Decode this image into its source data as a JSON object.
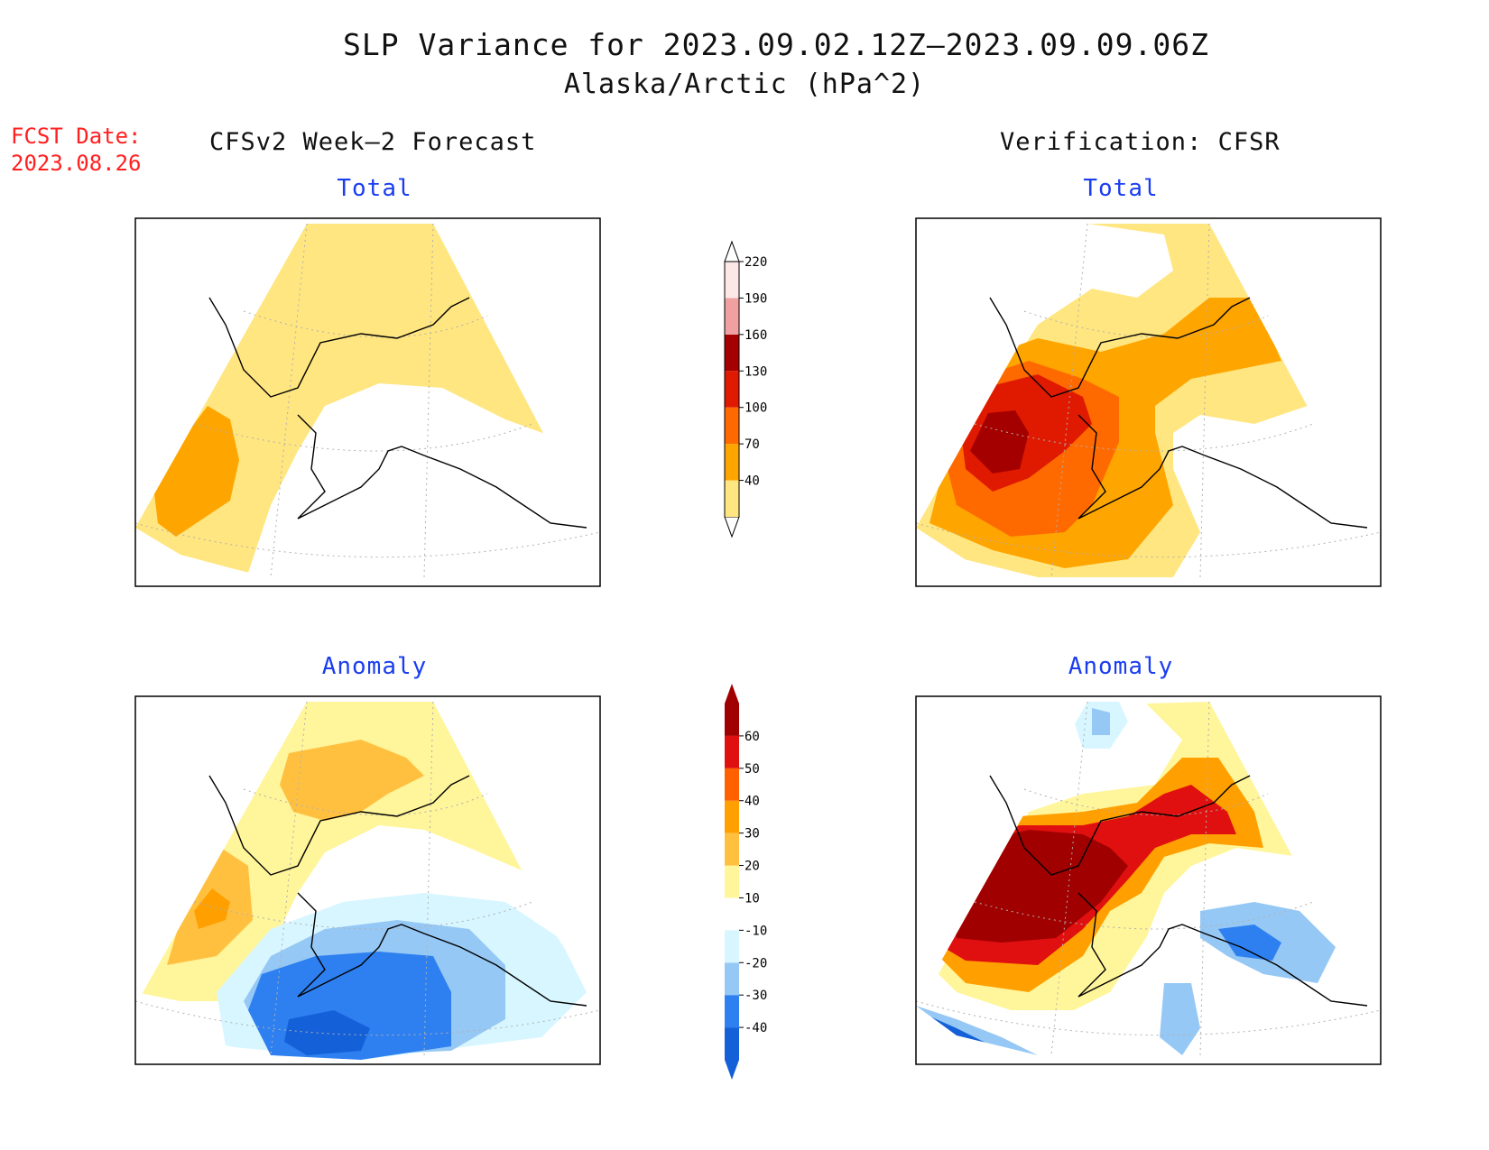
{
  "title": "SLP Variance for 2023.09.02.12Z–2023.09.09.06Z",
  "subtitle": "Alaska/Arctic (hPa^2)",
  "fcst_date_label": "FCST Date:",
  "fcst_date_value": "2023.08.26",
  "left_column_heading": "CFSv2 Week–2 Forecast",
  "right_column_heading": "Verification: CFSR",
  "panels": {
    "forecast_total_label": "Total",
    "forecast_anomaly_label": "Anomaly",
    "verification_total_label": "Total",
    "verification_anomaly_label": "Anomaly"
  },
  "total_colorbar": {
    "levels": [
      "40",
      "70",
      "100",
      "130",
      "160",
      "190",
      "220"
    ],
    "colors": [
      "#ffe680",
      "#ffa500",
      "#ff6a00",
      "#e01a00",
      "#a50000",
      "#f0a0a0",
      "#fde8e8"
    ]
  },
  "anomaly_colorbar": {
    "levels": [
      "-40",
      "-30",
      "-20",
      "-10",
      "10",
      "20",
      "30",
      "40",
      "50",
      "60"
    ],
    "colors": [
      "#1460d8",
      "#2e80f0",
      "#96c8f5",
      "#d8f6ff",
      "#ffffff",
      "#fff59a",
      "#ffc040",
      "#ffa000",
      "#ff6000",
      "#e01010",
      "#a00000"
    ]
  },
  "palette": {
    "title_blue": "#1a3df0",
    "fcst_red": "#ff2020",
    "coast": "#000000",
    "grid": "#aaaaaa"
  }
}
